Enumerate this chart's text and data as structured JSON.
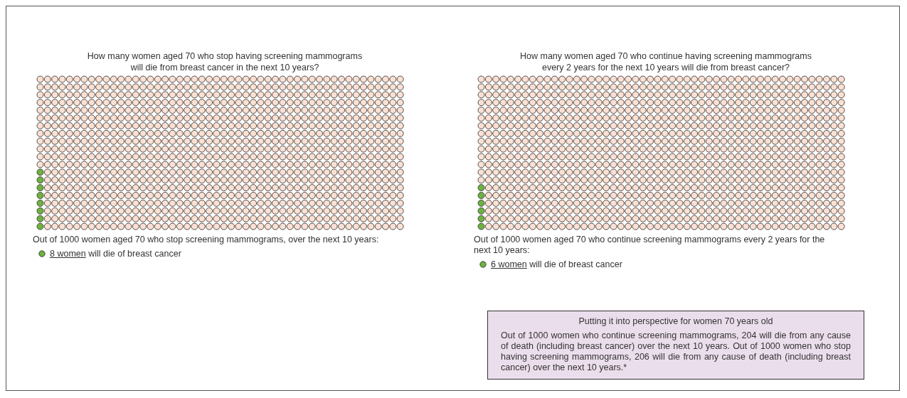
{
  "chart_data": [
    {
      "type": "other",
      "title": "How many women aged 70 who stop having screening mammograms\nwill die from breast cancer in the next 10 years?",
      "categories": [
        "will die of breast cancer"
      ],
      "values": [
        8
      ],
      "colors": [
        "#6db33f"
      ],
      "value_labels": [
        "8 women"
      ],
      "annotations": [
        "Out of 1000 women aged 70 who stop screening mammograms, over the next 10 years:"
      ]
    },
    {
      "type": "other",
      "title": "How many women aged 70 who continue having screening mammograms\nevery 2 years for the next 10 years will die from breast cancer?",
      "categories": [
        "will die of breast cancer"
      ],
      "values": [
        6
      ],
      "colors": [
        "#6db33f"
      ],
      "value_labels": [
        "6 women"
      ],
      "annotations": [
        "Out of 1000 women aged 70 who continue screening mammograms every 2 years for the next 10 years:"
      ]
    },
    {
      "type": "other",
      "title": "Putting it into perspective for women 70 years old",
      "annotations": [
        "Out of 1000 women who continue screening mammograms, 204 will die from any cause of death (including breast cancer) over the next 10 years. Out of 1000 women who stop having screening mammograms, 206 will die from any cause of death (including breast cancer) over the next 10 years.*"
      ]
    }
  ]
}
